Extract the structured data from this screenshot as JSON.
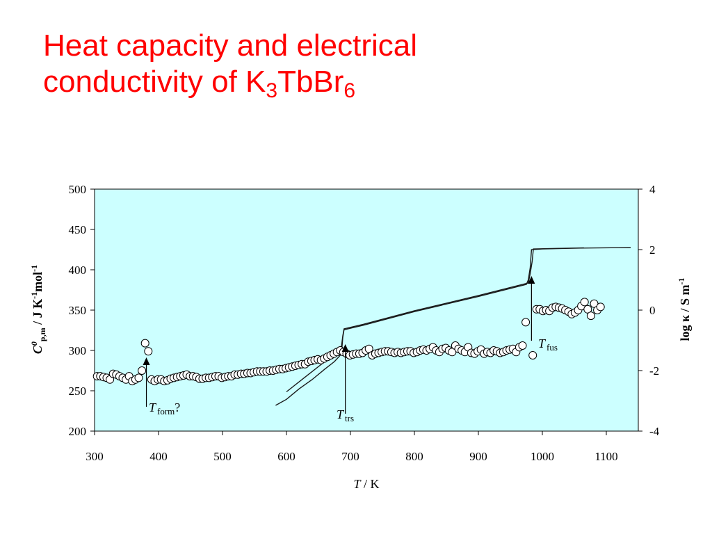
{
  "slide": {
    "title_part1": "Heat capacity and electrical",
    "title_part2": "conductivity of  K",
    "title_sub1": "3",
    "title_mid": "TbBr",
    "title_sub2": "6"
  },
  "chart_data": {
    "type": "scatter",
    "colors": {
      "plot_background": "#ccffff",
      "text": "#000000",
      "title": "#ff0000",
      "markers": "#000000"
    },
    "x_axis": {
      "label_italic": "T",
      "label_rest": " / K",
      "range": [
        300,
        1150
      ],
      "ticks": [
        "300",
        "400",
        "500",
        "600",
        "700",
        "800",
        "900",
        "1000",
        "1100"
      ]
    },
    "y_left": {
      "label_symbol": "C",
      "label_sup0": "0",
      "label_sub": "p,m",
      "label_mid": " / J K",
      "label_sup1": "-1",
      "label_mol": "mol",
      "label_sup2": "-1",
      "range": [
        200,
        500
      ],
      "ticks": [
        "200",
        "250",
        "300",
        "350",
        "400",
        "450",
        "500"
      ]
    },
    "y_right": {
      "label_text": "log κ / S m",
      "label_sup": "-1",
      "range": [
        -4,
        4
      ],
      "ticks": [
        "-4",
        "-2",
        "0",
        "2",
        "4"
      ]
    },
    "series": [
      {
        "marker": "open-circle",
        "axis": "left",
        "points": [
          [
            304,
            268
          ],
          [
            309,
            268
          ],
          [
            314,
            267
          ],
          [
            319,
            266
          ],
          [
            324,
            264
          ],
          [
            329,
            271
          ],
          [
            334,
            270
          ],
          [
            339,
            268
          ],
          [
            344,
            266
          ],
          [
            349,
            264
          ],
          [
            354,
            268
          ],
          [
            359,
            262
          ],
          [
            364,
            264
          ],
          [
            369,
            266
          ],
          [
            374,
            275
          ],
          [
            379,
            309
          ],
          [
            384,
            299
          ],
          [
            389,
            264
          ],
          [
            394,
            262
          ],
          [
            399,
            264
          ],
          [
            404,
            264
          ],
          [
            409,
            262
          ],
          [
            414,
            263
          ],
          [
            419,
            265
          ],
          [
            424,
            266
          ],
          [
            429,
            267
          ],
          [
            434,
            268
          ],
          [
            439,
            269
          ],
          [
            444,
            270
          ],
          [
            449,
            268
          ],
          [
            454,
            268
          ],
          [
            459,
            267
          ],
          [
            464,
            265
          ],
          [
            469,
            265
          ],
          [
            474,
            266
          ],
          [
            479,
            266
          ],
          [
            484,
            267
          ],
          [
            489,
            268
          ],
          [
            494,
            268
          ],
          [
            499,
            266
          ],
          [
            504,
            267
          ],
          [
            509,
            268
          ],
          [
            514,
            268
          ],
          [
            519,
            270
          ],
          [
            524,
            270
          ],
          [
            529,
            271
          ],
          [
            534,
            271
          ],
          [
            539,
            272
          ],
          [
            544,
            272
          ],
          [
            549,
            273
          ],
          [
            554,
            274
          ],
          [
            559,
            274
          ],
          [
            564,
            274
          ],
          [
            569,
            274
          ],
          [
            574,
            275
          ],
          [
            579,
            275
          ],
          [
            584,
            276
          ],
          [
            589,
            277
          ],
          [
            594,
            277
          ],
          [
            599,
            278
          ],
          [
            604,
            279
          ],
          [
            609,
            280
          ],
          [
            614,
            281
          ],
          [
            619,
            282
          ],
          [
            624,
            283
          ],
          [
            629,
            283
          ],
          [
            634,
            286
          ],
          [
            639,
            287
          ],
          [
            644,
            288
          ],
          [
            649,
            289
          ],
          [
            654,
            288
          ],
          [
            659,
            290
          ],
          [
            664,
            292
          ],
          [
            669,
            294
          ],
          [
            674,
            296
          ],
          [
            679,
            298
          ],
          [
            684,
            300
          ],
          [
            689,
            298
          ],
          [
            694,
            296
          ],
          [
            699,
            294
          ],
          [
            704,
            295
          ],
          [
            709,
            296
          ],
          [
            714,
            296
          ],
          [
            719,
            297
          ],
          [
            724,
            300
          ],
          [
            729,
            302
          ],
          [
            734,
            294
          ],
          [
            739,
            296
          ],
          [
            744,
            297
          ],
          [
            749,
            298
          ],
          [
            754,
            299
          ],
          [
            759,
            299
          ],
          [
            764,
            298
          ],
          [
            769,
            297
          ],
          [
            774,
            298
          ],
          [
            779,
            297
          ],
          [
            784,
            298
          ],
          [
            789,
            299
          ],
          [
            794,
            299
          ],
          [
            799,
            297
          ],
          [
            804,
            298
          ],
          [
            809,
            300
          ],
          [
            814,
            301
          ],
          [
            819,
            300
          ],
          [
            824,
            302
          ],
          [
            829,
            304
          ],
          [
            834,
            300
          ],
          [
            839,
            298
          ],
          [
            844,
            302
          ],
          [
            849,
            303
          ],
          [
            854,
            300
          ],
          [
            859,
            298
          ],
          [
            864,
            306
          ],
          [
            869,
            302
          ],
          [
            874,
            300
          ],
          [
            879,
            298
          ],
          [
            884,
            304
          ],
          [
            889,
            297
          ],
          [
            894,
            296
          ],
          [
            899,
            299
          ],
          [
            904,
            301
          ],
          [
            909,
            296
          ],
          [
            914,
            298
          ],
          [
            919,
            297
          ],
          [
            924,
            300
          ],
          [
            929,
            299
          ],
          [
            934,
            297
          ],
          [
            939,
            298
          ],
          [
            944,
            300
          ],
          [
            949,
            301
          ],
          [
            954,
            302
          ],
          [
            959,
            298
          ],
          [
            964,
            304
          ],
          [
            969,
            306
          ],
          [
            974,
            335
          ],
          [
            985,
            294
          ],
          [
            991,
            351
          ],
          [
            996,
            351
          ],
          [
            1001,
            349
          ],
          [
            1006,
            350
          ],
          [
            1011,
            349
          ],
          [
            1016,
            353
          ],
          [
            1021,
            354
          ],
          [
            1026,
            353
          ],
          [
            1031,
            352
          ],
          [
            1036,
            350
          ],
          [
            1041,
            348
          ],
          [
            1046,
            345
          ],
          [
            1051,
            347
          ],
          [
            1056,
            350
          ],
          [
            1061,
            355
          ],
          [
            1066,
            360
          ],
          [
            1071,
            351
          ],
          [
            1076,
            343
          ],
          [
            1081,
            358
          ],
          [
            1086,
            350
          ],
          [
            1091,
            354
          ]
        ]
      },
      {
        "marker": "line",
        "axis": "right",
        "points": [
          [
            583,
            -3.15
          ],
          [
            600,
            -2.95
          ],
          [
            620,
            -2.6
          ],
          [
            640,
            -2.3
          ],
          [
            660,
            -1.95
          ],
          [
            675,
            -1.7
          ],
          [
            686,
            -1.45
          ],
          [
            688,
            -0.9
          ],
          [
            690,
            -0.65
          ],
          [
            720,
            -0.5
          ],
          [
            800,
            -0.05
          ],
          [
            900,
            0.45
          ],
          [
            975,
            0.85
          ],
          [
            978,
            1.0
          ],
          [
            981,
            1.4
          ],
          [
            983,
            2.0
          ],
          [
            1000,
            2.02
          ],
          [
            1060,
            2.05
          ],
          [
            1138,
            2.07
          ]
        ]
      },
      {
        "marker": "line",
        "axis": "right",
        "points": [
          [
            600,
            -2.7
          ],
          [
            630,
            -2.2
          ],
          [
            660,
            -1.7
          ],
          [
            680,
            -1.35
          ],
          [
            686,
            -1.2
          ],
          [
            688,
            -0.85
          ],
          [
            690,
            -0.62
          ],
          [
            720,
            -0.47
          ],
          [
            800,
            -0.02
          ],
          [
            900,
            0.48
          ],
          [
            978,
            0.9
          ],
          [
            981,
            1.2
          ],
          [
            984,
            1.6
          ],
          [
            986,
            2.02
          ],
          [
            1020,
            2.04
          ],
          [
            1065,
            2.06
          ]
        ]
      }
    ],
    "annotations": [
      {
        "symbol": "T",
        "sub": "form",
        "suffix": "?",
        "x": 381
      },
      {
        "symbol": "T",
        "sub": "trs",
        "suffix": "",
        "x": 692
      },
      {
        "symbol": "T",
        "sub": "fus",
        "suffix": "",
        "x": 983
      }
    ]
  }
}
